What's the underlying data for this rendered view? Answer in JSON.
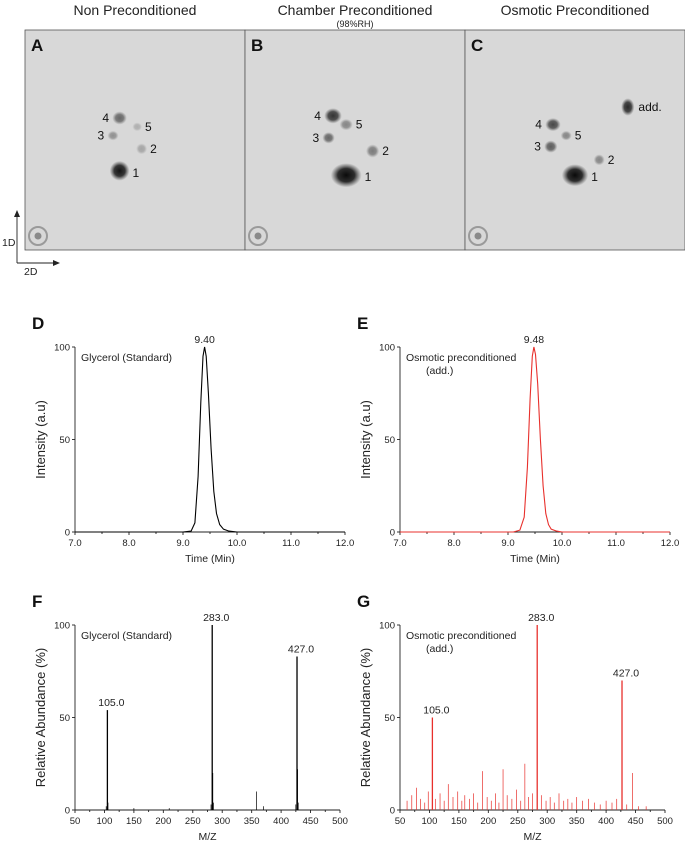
{
  "panels_top": [
    {
      "letter": "A",
      "title": "Non Preconditioned",
      "subtitle": "",
      "spots": [
        {
          "label": "1",
          "sx": 0.43,
          "sy": 0.64,
          "rx": 0.045,
          "ry": 0.045,
          "darkness": 0.95
        },
        {
          "label": "2",
          "sx": 0.53,
          "sy": 0.54,
          "rx": 0.025,
          "ry": 0.025,
          "darkness": 0.25
        },
        {
          "label": "3",
          "sx": 0.4,
          "sy": 0.48,
          "rx": 0.025,
          "ry": 0.022,
          "darkness": 0.35
        },
        {
          "label": "4",
          "sx": 0.43,
          "sy": 0.4,
          "rx": 0.033,
          "ry": 0.03,
          "darkness": 0.55
        },
        {
          "label": "5",
          "sx": 0.51,
          "sy": 0.44,
          "rx": 0.022,
          "ry": 0.02,
          "darkness": 0.2
        }
      ]
    },
    {
      "letter": "B",
      "title": "Chamber Preconditioned",
      "subtitle": "(98%RH)",
      "spots": [
        {
          "label": "1",
          "sx": 0.46,
          "sy": 0.66,
          "rx": 0.07,
          "ry": 0.055,
          "darkness": 1.0
        },
        {
          "label": "2",
          "sx": 0.58,
          "sy": 0.55,
          "rx": 0.03,
          "ry": 0.03,
          "darkness": 0.45
        },
        {
          "label": "3",
          "sx": 0.38,
          "sy": 0.49,
          "rx": 0.028,
          "ry": 0.026,
          "darkness": 0.55
        },
        {
          "label": "4",
          "sx": 0.4,
          "sy": 0.39,
          "rx": 0.04,
          "ry": 0.035,
          "darkness": 0.8
        },
        {
          "label": "5",
          "sx": 0.46,
          "sy": 0.43,
          "rx": 0.03,
          "ry": 0.026,
          "darkness": 0.4
        }
      ]
    },
    {
      "letter": "C",
      "title": "Osmotic Preconditioned",
      "subtitle": "",
      "spots": [
        {
          "label": "1",
          "sx": 0.5,
          "sy": 0.66,
          "rx": 0.06,
          "ry": 0.05,
          "darkness": 1.0
        },
        {
          "label": "2",
          "sx": 0.61,
          "sy": 0.59,
          "rx": 0.025,
          "ry": 0.025,
          "darkness": 0.4
        },
        {
          "label": "3",
          "sx": 0.39,
          "sy": 0.53,
          "rx": 0.03,
          "ry": 0.028,
          "darkness": 0.6
        },
        {
          "label": "4",
          "sx": 0.4,
          "sy": 0.43,
          "rx": 0.035,
          "ry": 0.03,
          "darkness": 0.7
        },
        {
          "label": "5",
          "sx": 0.46,
          "sy": 0.48,
          "rx": 0.025,
          "ry": 0.022,
          "darkness": 0.4
        },
        {
          "label": "add.",
          "sx": 0.74,
          "sy": 0.35,
          "rx": 0.03,
          "ry": 0.04,
          "darkness": 0.85
        }
      ]
    }
  ],
  "axes_2d": {
    "vertical": "1D",
    "horizontal": "2D"
  },
  "chart_data": [
    {
      "panel": "D",
      "type": "line",
      "title": "",
      "color": "#000000",
      "label_line1": "Glycerol (Standard)",
      "label_line2": "",
      "xlabel": "Time (Min)",
      "ylabel": "Intensity (a.u)",
      "xlim": [
        7.0,
        12.0
      ],
      "ylim": [
        0,
        100
      ],
      "xticks": [
        "7.0",
        "8.0",
        "9.0",
        "10.0",
        "11.0",
        "12.0"
      ],
      "yticks": [
        "0",
        "50",
        "100"
      ],
      "peak_label": "9.40",
      "x": [
        7.0,
        9.0,
        9.15,
        9.22,
        9.28,
        9.33,
        9.37,
        9.4,
        9.43,
        9.47,
        9.52,
        9.57,
        9.62,
        9.68,
        9.75,
        9.85,
        10.0,
        12.0
      ],
      "y": [
        0,
        0,
        0.5,
        5,
        30,
        70,
        95,
        100,
        95,
        75,
        45,
        22,
        10,
        4,
        1.5,
        0.5,
        0,
        0
      ]
    },
    {
      "panel": "E",
      "type": "line",
      "title": "",
      "color": "#e8302c",
      "label_line1": "Osmotic preconditioned",
      "label_line2": "(add.)",
      "xlabel": "Time (Min)",
      "ylabel": "Intensity (a.u)",
      "xlim": [
        7.0,
        12.0
      ],
      "ylim": [
        0,
        100
      ],
      "xticks": [
        "7.0",
        "8.0",
        "9.0",
        "10.0",
        "11.0",
        "12.0"
      ],
      "yticks": [
        "0",
        "50",
        "100"
      ],
      "peak_label": "9.48",
      "x": [
        7.0,
        9.1,
        9.22,
        9.3,
        9.36,
        9.41,
        9.45,
        9.48,
        9.51,
        9.55,
        9.6,
        9.65,
        9.7,
        9.75,
        9.8,
        9.9,
        10.0,
        12.0
      ],
      "y": [
        0,
        0,
        1,
        8,
        35,
        72,
        95,
        100,
        96,
        80,
        50,
        25,
        10,
        4,
        1.5,
        0.5,
        0,
        0
      ]
    },
    {
      "panel": "F",
      "type": "bar",
      "title": "",
      "color": "#000000",
      "label_line1": "Glycerol (Standard)",
      "label_line2": "",
      "xlabel": "M/Z",
      "ylabel": "Relative Abundance (%)",
      "xlim": [
        50,
        500
      ],
      "ylim": [
        0,
        100
      ],
      "xticks": [
        "50",
        "100",
        "150",
        "200",
        "250",
        "300",
        "350",
        "400",
        "450",
        "500"
      ],
      "yticks": [
        "0",
        "50",
        "100"
      ],
      "peak_labels": [
        {
          "x": 105.0,
          "y": 54,
          "text": "105.0"
        },
        {
          "x": 283.0,
          "y": 100,
          "text": "283.0"
        },
        {
          "x": 427.0,
          "y": 83,
          "text": "427.0"
        }
      ],
      "peaks": [
        [
          103,
          2
        ],
        [
          105,
          54
        ],
        [
          106,
          4
        ],
        [
          150,
          1
        ],
        [
          210,
          1
        ],
        [
          281,
          3
        ],
        [
          283,
          100
        ],
        [
          284,
          20
        ],
        [
          285,
          4
        ],
        [
          358,
          10
        ],
        [
          370,
          2
        ],
        [
          425,
          3
        ],
        [
          427,
          83
        ],
        [
          428,
          22
        ],
        [
          429,
          4
        ]
      ]
    },
    {
      "panel": "G",
      "type": "bar",
      "title": "",
      "color": "#e8302c",
      "label_line1": "Osmotic preconditioned",
      "label_line2": "(add.)",
      "xlabel": "M/Z",
      "ylabel": "Relative Abundance (%)",
      "xlim": [
        50,
        500
      ],
      "ylim": [
        0,
        100
      ],
      "xticks": [
        "50",
        "100",
        "150",
        "200",
        "250",
        "300",
        "350",
        "400",
        "450",
        "500"
      ],
      "yticks": [
        "0",
        "50",
        "100"
      ],
      "peak_labels": [
        {
          "x": 105.0,
          "y": 50,
          "text": "105.0"
        },
        {
          "x": 283.0,
          "y": 100,
          "text": "283.0"
        },
        {
          "x": 427.0,
          "y": 70,
          "text": "427.0"
        }
      ],
      "peaks": [
        [
          62,
          5
        ],
        [
          70,
          8
        ],
        [
          78,
          12
        ],
        [
          85,
          6
        ],
        [
          92,
          4
        ],
        [
          98,
          10
        ],
        [
          105,
          50
        ],
        [
          110,
          6
        ],
        [
          118,
          9
        ],
        [
          125,
          5
        ],
        [
          132,
          14
        ],
        [
          140,
          7
        ],
        [
          148,
          10
        ],
        [
          155,
          5
        ],
        [
          160,
          8
        ],
        [
          168,
          6
        ],
        [
          175,
          9
        ],
        [
          182,
          4
        ],
        [
          190,
          21
        ],
        [
          198,
          7
        ],
        [
          205,
          5
        ],
        [
          212,
          9
        ],
        [
          218,
          4
        ],
        [
          225,
          22
        ],
        [
          232,
          8
        ],
        [
          240,
          6
        ],
        [
          248,
          11
        ],
        [
          255,
          5
        ],
        [
          262,
          25
        ],
        [
          268,
          7
        ],
        [
          275,
          9
        ],
        [
          283,
          100
        ],
        [
          290,
          8
        ],
        [
          298,
          5
        ],
        [
          305,
          7
        ],
        [
          312,
          4
        ],
        [
          320,
          9
        ],
        [
          328,
          5
        ],
        [
          335,
          6
        ],
        [
          342,
          4
        ],
        [
          350,
          7
        ],
        [
          360,
          5
        ],
        [
          370,
          6
        ],
        [
          380,
          4
        ],
        [
          390,
          3
        ],
        [
          400,
          5
        ],
        [
          410,
          4
        ],
        [
          418,
          6
        ],
        [
          427,
          70
        ],
        [
          435,
          3
        ],
        [
          445,
          20
        ],
        [
          455,
          2
        ],
        [
          468,
          2
        ]
      ]
    }
  ]
}
